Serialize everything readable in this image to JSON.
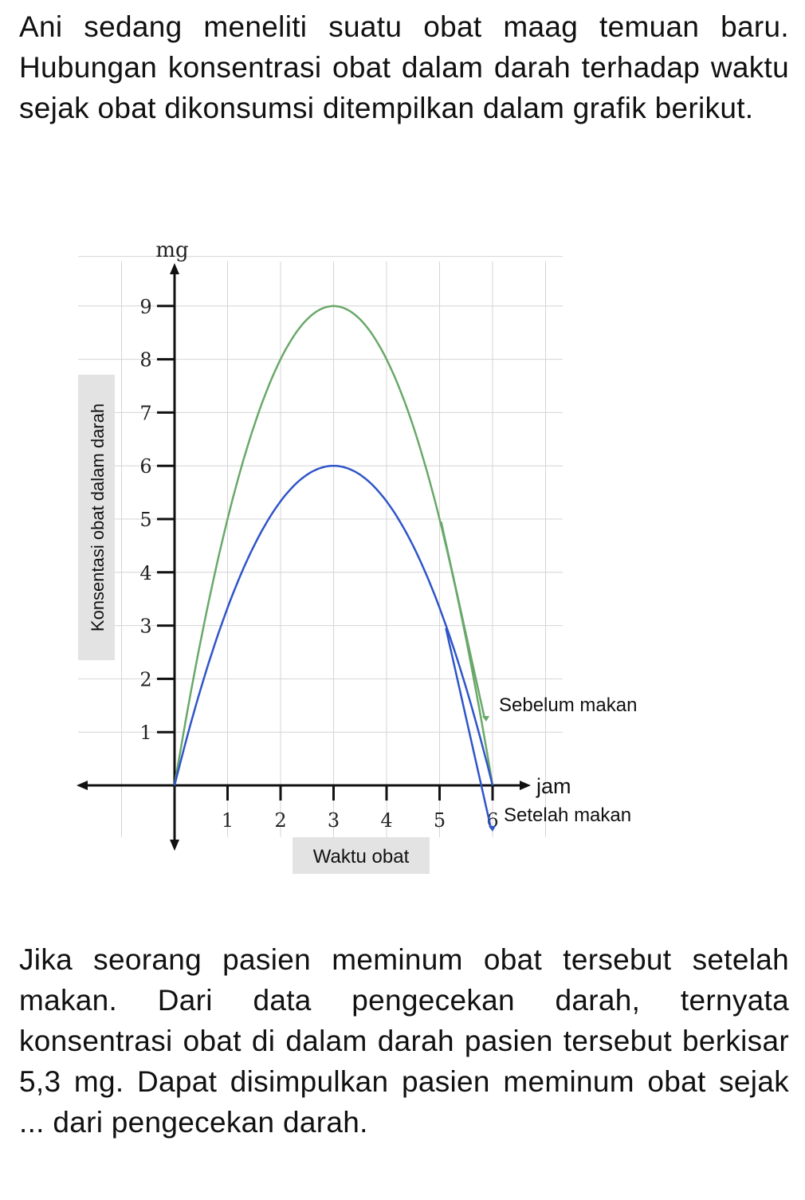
{
  "intro_text": "Ani sedang meneliti suatu obat maag temuan baru. Hubungan konsentrasi obat dalam darah terhadap waktu sejak obat dikonsumsi ditempilkan dalam grafik berikut.",
  "question_text": "Jika seorang pasien meminum obat tersebut setelah makan. Dari data pengecekan darah, ternyata konsentrasi obat di dalam darah pasien tersebut berkisar  5,3 mg. Dapat disimpulkan pasien meminum obat sejak ... dari pengecekan darah.",
  "chart_data": {
    "type": "line",
    "xlabel": "Waktu obat",
    "ylabel": "Konsentasi obat dalam darah",
    "x_unit": "jam",
    "y_unit": "mg",
    "xlim": [
      0,
      6
    ],
    "ylim": [
      0,
      9
    ],
    "x_ticks": [
      "1",
      "2",
      "3",
      "4",
      "5",
      "6"
    ],
    "y_ticks": [
      "1",
      "2",
      "3",
      "4",
      "5",
      "6",
      "7",
      "8",
      "9"
    ],
    "grid": true,
    "series": [
      {
        "name": "Sebelum makan",
        "color": "#6aa86a",
        "x": [
          0,
          0.5,
          1,
          1.5,
          2,
          2.5,
          3,
          3.5,
          4,
          4.5,
          5,
          5.5,
          6
        ],
        "y": [
          0,
          2.75,
          5,
          6.75,
          8,
          8.75,
          9,
          8.75,
          8,
          6.75,
          5,
          2.75,
          0
        ]
      },
      {
        "name": "Setelah makan",
        "color": "#2f55c8",
        "x": [
          0,
          0.5,
          1,
          1.5,
          2,
          2.5,
          3,
          3.5,
          4,
          4.5,
          5,
          5.5,
          6
        ],
        "y": [
          0,
          1.83,
          3.33,
          4.5,
          5.33,
          5.83,
          6,
          5.83,
          5.33,
          4.5,
          3.33,
          1.83,
          0
        ]
      }
    ]
  }
}
